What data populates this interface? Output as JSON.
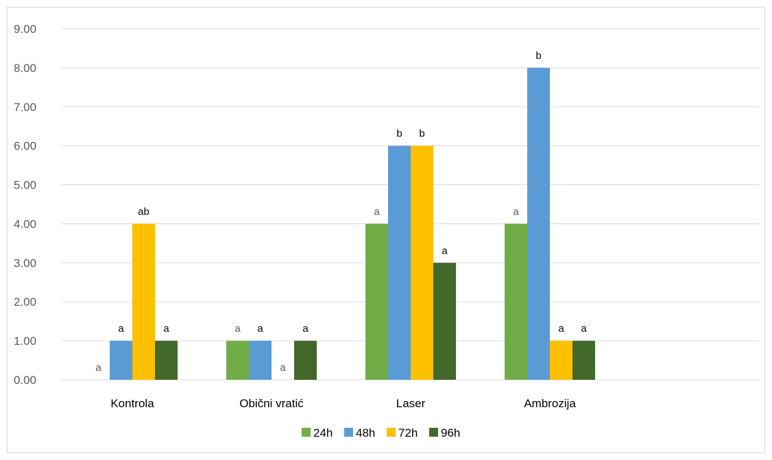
{
  "chart_data": {
    "type": "bar",
    "title": "",
    "xlabel": "",
    "ylabel": "",
    "ylim": [
      0,
      9
    ],
    "yticks": [
      "0.00",
      "1.00",
      "2.00",
      "3.00",
      "4.00",
      "5.00",
      "6.00",
      "7.00",
      "8.00",
      "9.00"
    ],
    "grid": true,
    "legend_position": "bottom",
    "categories": [
      "Kontrola",
      "Obični vratić",
      "Laser",
      "Ambrozija"
    ],
    "series": [
      {
        "name": "24h",
        "color": "#70ad47",
        "values": [
          0,
          1,
          4,
          4
        ],
        "labels": [
          "a",
          "a",
          "a",
          "a"
        ]
      },
      {
        "name": "48h",
        "color": "#5b9bd5",
        "values": [
          1,
          1,
          6,
          8
        ],
        "labels": [
          "a",
          "a",
          "b",
          "b"
        ]
      },
      {
        "name": "72h",
        "color": "#ffc000",
        "values": [
          4,
          0,
          6,
          1
        ],
        "labels": [
          "ab",
          "a",
          "b",
          "a"
        ]
      },
      {
        "name": "96h",
        "color": "#43682b",
        "values": [
          1,
          1,
          3,
          1
        ],
        "labels": [
          "a",
          "a",
          "a",
          "a"
        ]
      }
    ]
  }
}
